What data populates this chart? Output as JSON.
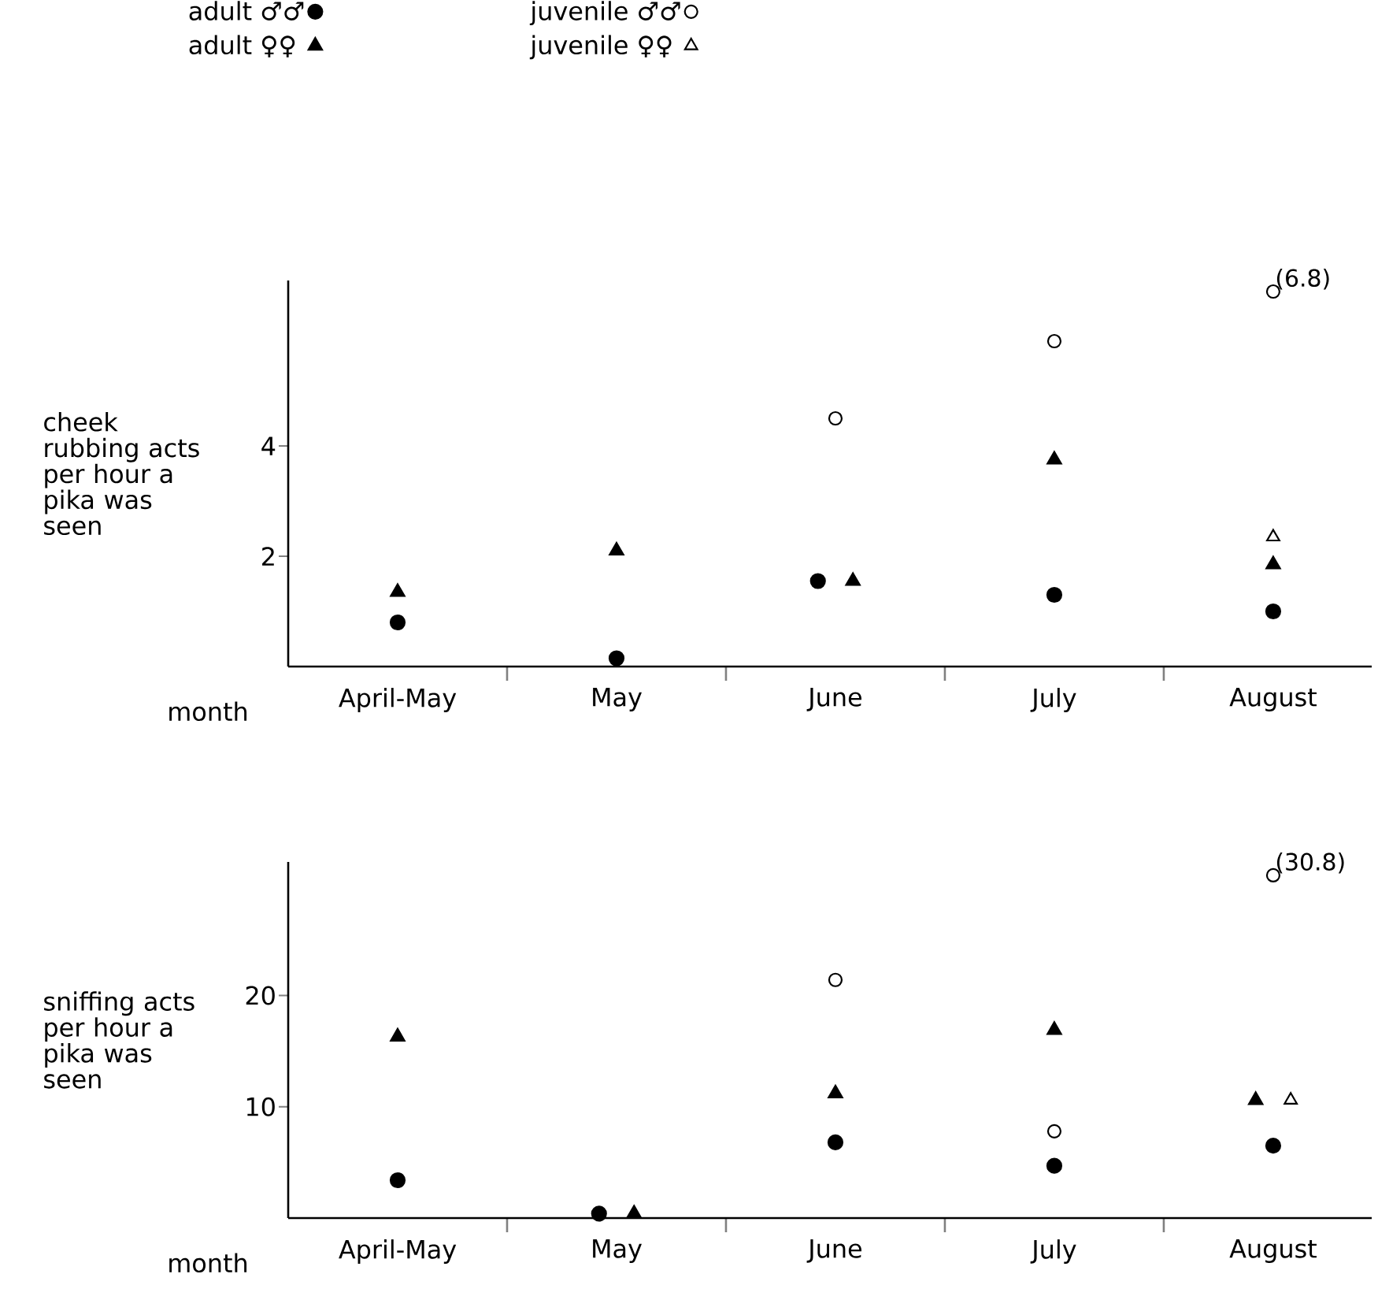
{
  "chart_data": [
    {
      "type": "scatter",
      "ylabel": "cheek rubbing acts per hour a pika was seen",
      "xlabel": "month",
      "categories": [
        "April-May",
        "May",
        "June",
        "July",
        "August"
      ],
      "ylim": [
        0,
        7
      ],
      "yticks": [
        2,
        4
      ],
      "legend": "top",
      "series": [
        {
          "name": "adult ♂♂",
          "color": "#000000",
          "marker": "circle",
          "values": [
            0.8,
            0.15,
            1.55,
            1.3,
            1.0
          ]
        },
        {
          "name": "adult ♀♀",
          "color": "#000000",
          "marker": "triangle",
          "values": [
            1.35,
            2.1,
            1.55,
            3.75,
            1.85
          ]
        },
        {
          "name": "juvenile ♂♂",
          "color": "#000000",
          "marker": "circle",
          "values": [
            null,
            null,
            4.5,
            5.9,
            6.8
          ]
        },
        {
          "name": "juvenile ♀♀",
          "color": "#000000",
          "marker": "triangle",
          "values": [
            null,
            null,
            null,
            null,
            2.35
          ]
        }
      ],
      "annotations": [
        {
          "text": "(6.8)",
          "x": "August",
          "y": 6.8
        }
      ]
    },
    {
      "type": "scatter",
      "ylabel": "sniffing acts per hour a pika was seen",
      "xlabel": "month",
      "categories": [
        "April-May",
        "May",
        "June",
        "July",
        "August"
      ],
      "ylim": [
        0,
        32
      ],
      "yticks": [
        10,
        20
      ],
      "series": [
        {
          "color": "#000000",
          "marker": "circle",
          "values": [
            3.4,
            0.4,
            6.8,
            4.7,
            6.5
          ]
        },
        {
          "color": "#000000",
          "marker": "triangle",
          "values": [
            16.3,
            0.4,
            11.2,
            16.9,
            10.6
          ]
        },
        {
          "color": "#000000",
          "marker": "circle",
          "values": [
            null,
            null,
            21.4,
            7.8,
            30.8
          ]
        },
        {
          "color": "#000000",
          "marker": "triangle",
          "values": [
            null,
            null,
            null,
            null,
            10.6
          ]
        }
      ],
      "annotations": [
        {
          "text": "(30.8)",
          "x": "August",
          "y": 30.8
        }
      ]
    }
  ]
}
